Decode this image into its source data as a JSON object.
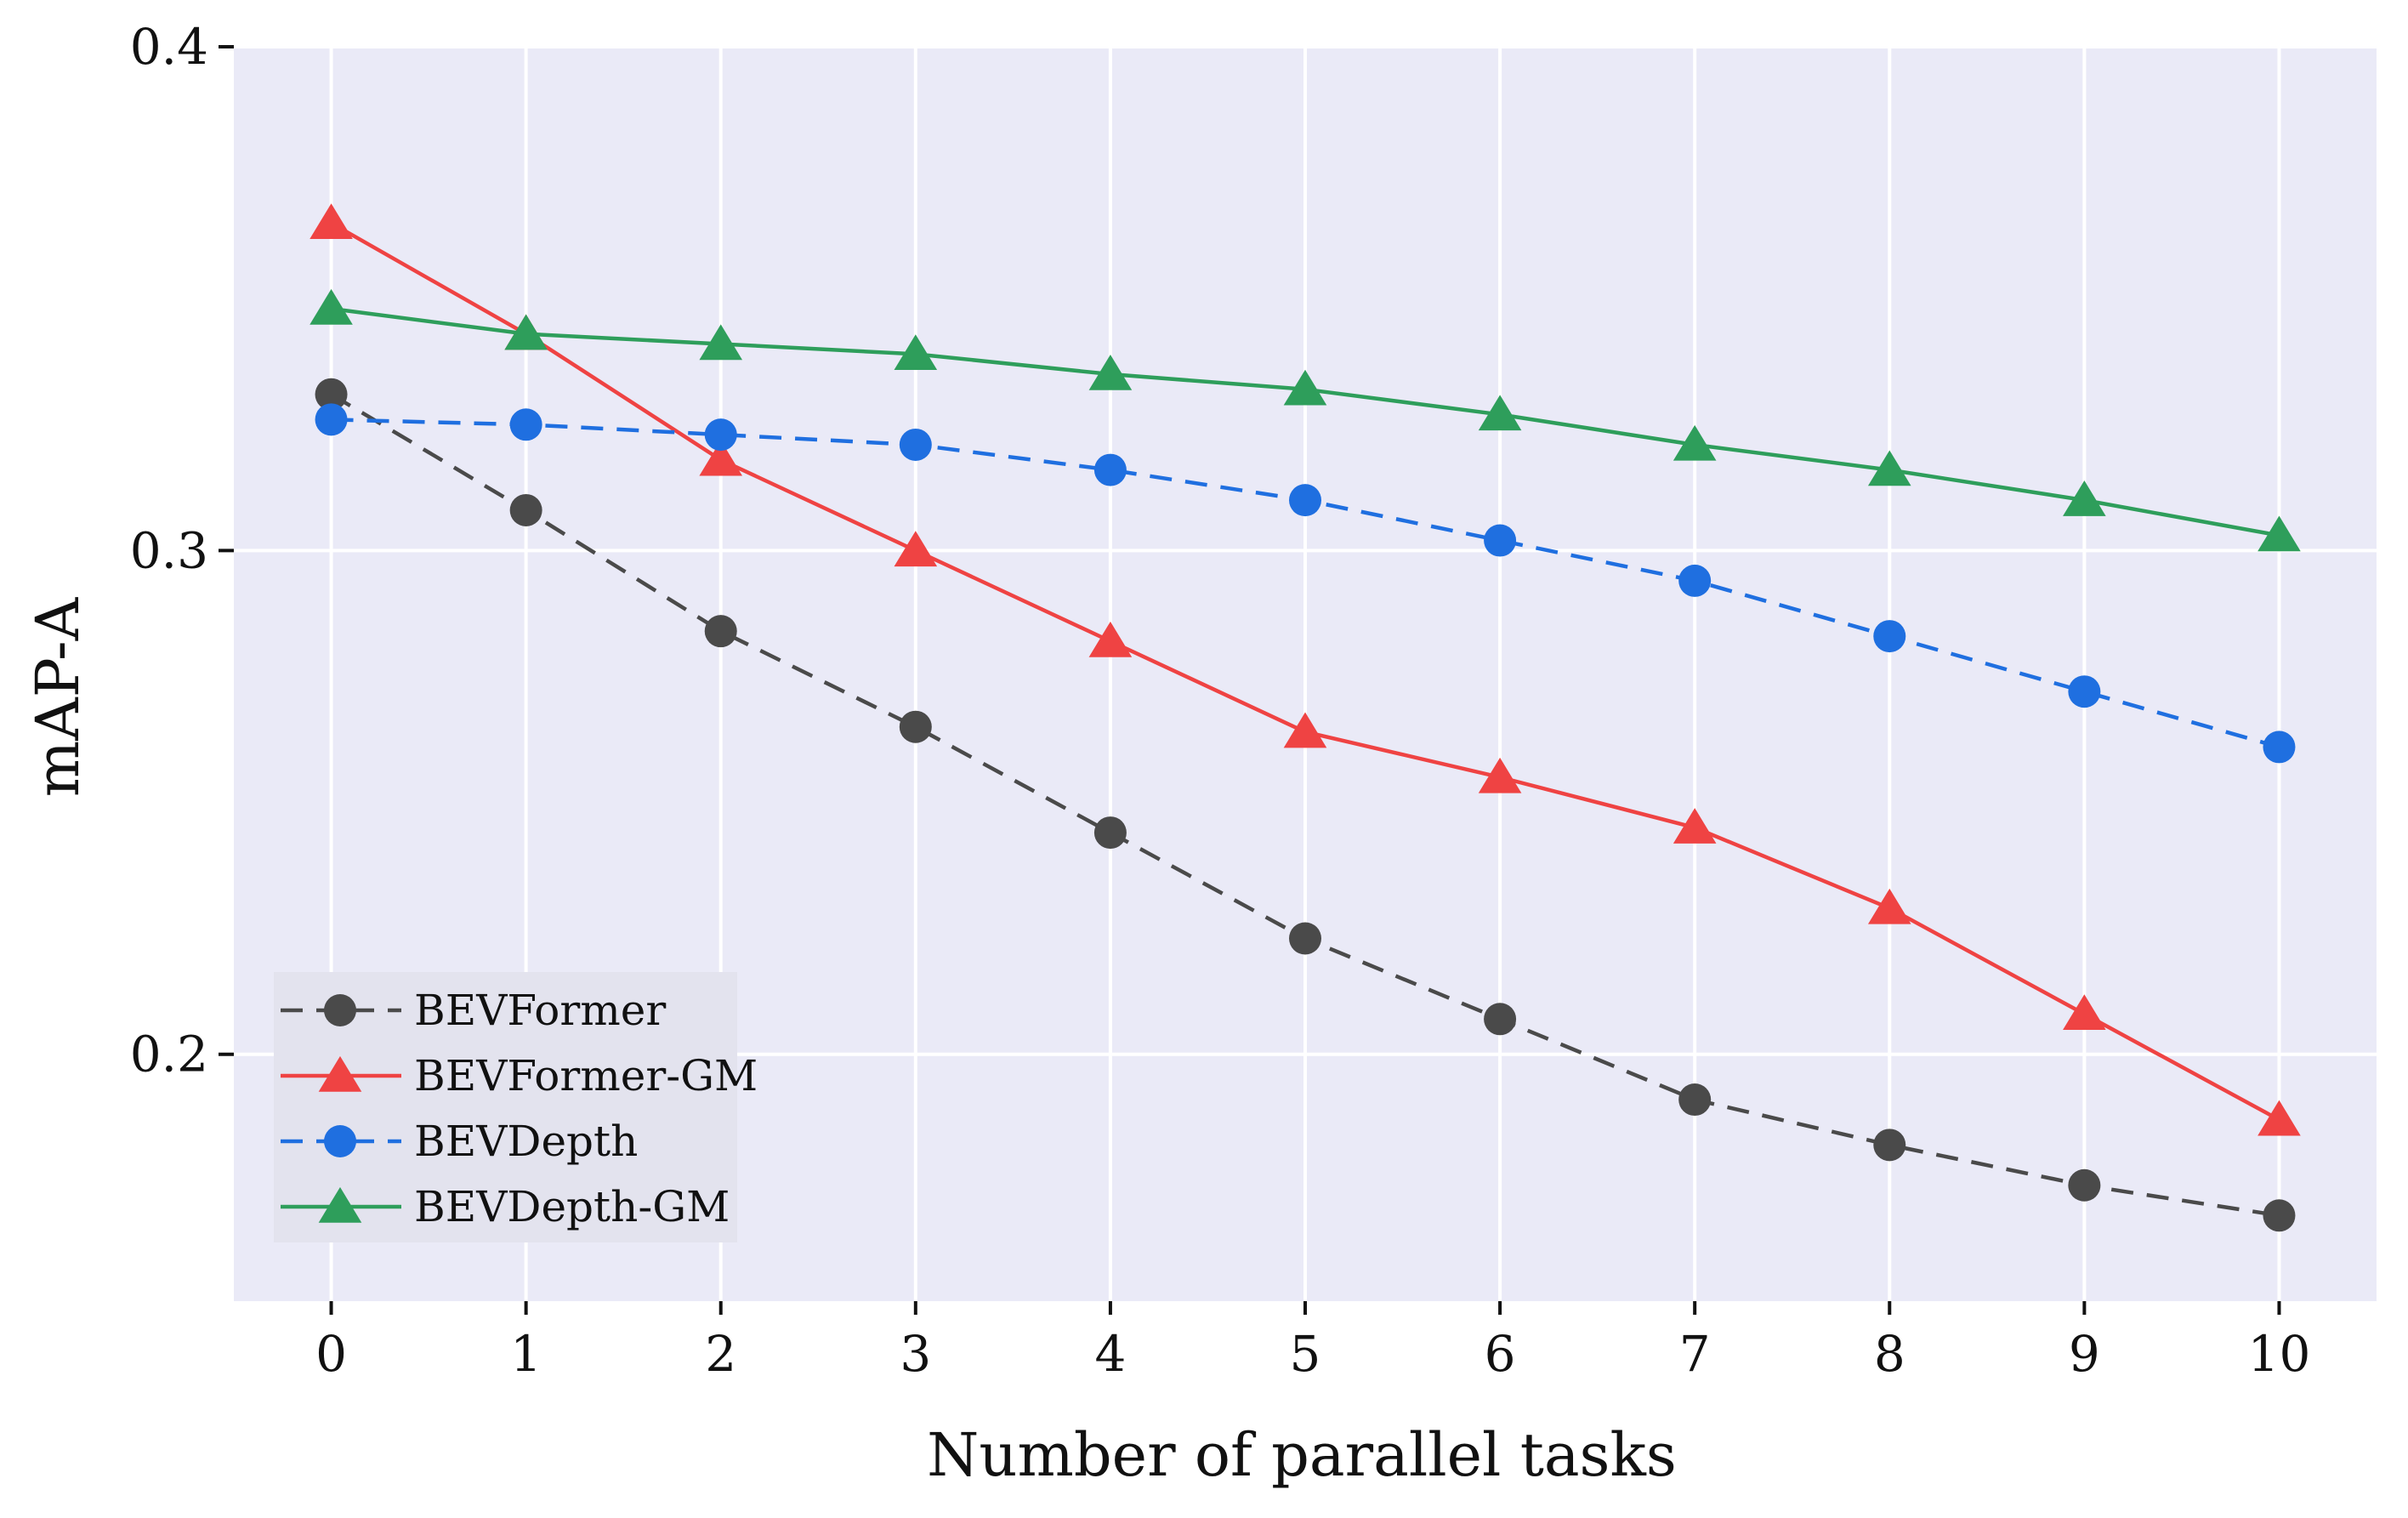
{
  "chart_data": {
    "type": "line",
    "title": "",
    "xlabel": "Number of parallel tasks",
    "ylabel": "mAP-A",
    "x": [
      0,
      1,
      2,
      3,
      4,
      5,
      6,
      7,
      8,
      9,
      10
    ],
    "xticks": [
      "0",
      "1",
      "2",
      "3",
      "4",
      "5",
      "6",
      "7",
      "8",
      "9",
      "10"
    ],
    "yticks": [
      "0.2",
      "0.3",
      "0.4"
    ],
    "ylim": [
      0.151,
      0.4
    ],
    "xlim": [
      -0.5,
      10.5
    ],
    "grid": true,
    "legend_position": "lower-left",
    "background_color": "#eaeaf7",
    "series": [
      {
        "name": "BEVFormer",
        "color": "#4a4a4a",
        "marker": "circle",
        "linestyle": "dashed",
        "values": [
          0.331,
          0.308,
          0.284,
          0.265,
          0.244,
          0.223,
          0.207,
          0.191,
          0.182,
          0.174,
          0.168
        ]
      },
      {
        "name": "BEVFormer-GM",
        "color": "#ef4343",
        "marker": "triangle",
        "linestyle": "solid",
        "values": [
          0.365,
          0.343,
          0.318,
          0.3,
          0.282,
          0.264,
          0.255,
          0.245,
          0.229,
          0.208,
          0.187
        ]
      },
      {
        "name": "BEVDepth",
        "color": "#1f6fe0",
        "marker": "circle",
        "linestyle": "dashed",
        "values": [
          0.326,
          0.325,
          0.323,
          0.321,
          0.316,
          0.31,
          0.302,
          0.294,
          0.283,
          0.272,
          0.261
        ]
      },
      {
        "name": "BEVDepth-GM",
        "color": "#2e9e5b",
        "marker": "triangle",
        "linestyle": "solid",
        "values": [
          0.348,
          0.343,
          0.341,
          0.339,
          0.335,
          0.332,
          0.327,
          0.321,
          0.316,
          0.31,
          0.303
        ]
      }
    ]
  }
}
